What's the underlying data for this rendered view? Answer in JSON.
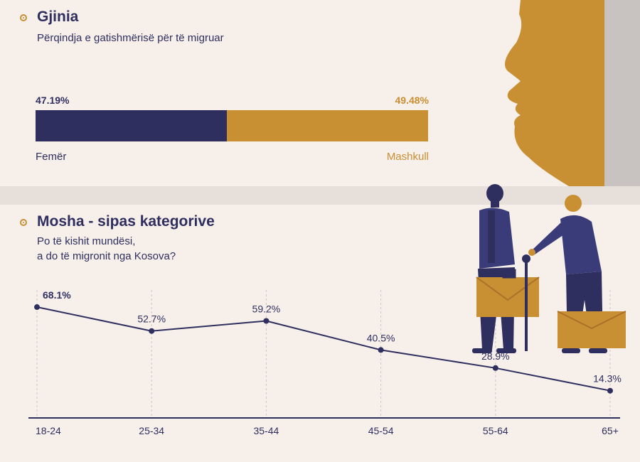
{
  "gender": {
    "title": "Gjinia",
    "subtitle": "Përqindja e gatishmërisë për të migruar",
    "female_label": "Femër",
    "male_label": "Mashkull",
    "female_pct_text": "47.19%",
    "male_pct_text": "49.48%"
  },
  "age": {
    "title": "Mosha - sipas kategorive",
    "subtitle_line1": "Po të kishit mundësi,",
    "subtitle_line2": "a do të migronit nga Kosova?"
  },
  "colors": {
    "navy": "#2e2f5e",
    "gold": "#c98f33",
    "background": "#f7efea"
  },
  "chart_data": [
    {
      "type": "bar",
      "orientation": "horizontal-stacked",
      "series": [
        {
          "name": "Femër",
          "value": 47.19,
          "color": "#2e2f5e"
        },
        {
          "name": "Mashkull",
          "value": 49.48,
          "color": "#c98f33"
        }
      ],
      "title": "Gjinia",
      "subtitle": "Përqindja e gatishmërisë për të migruar"
    },
    {
      "type": "line",
      "title": "Mosha - sipas kategorive",
      "subtitle": "Po të kishit mundësi, a do të migronit nga Kosova?",
      "categories": [
        "18-24",
        "25-34",
        "35-44",
        "45-54",
        "55-64",
        "65+"
      ],
      "values": [
        68.1,
        52.7,
        59.2,
        40.5,
        28.9,
        14.3
      ],
      "labels": [
        "68.1%",
        "52.7%",
        "59.2%",
        "40.5%",
        "28.9%",
        "14.3%"
      ],
      "grid": "vertical dashed"
    }
  ]
}
